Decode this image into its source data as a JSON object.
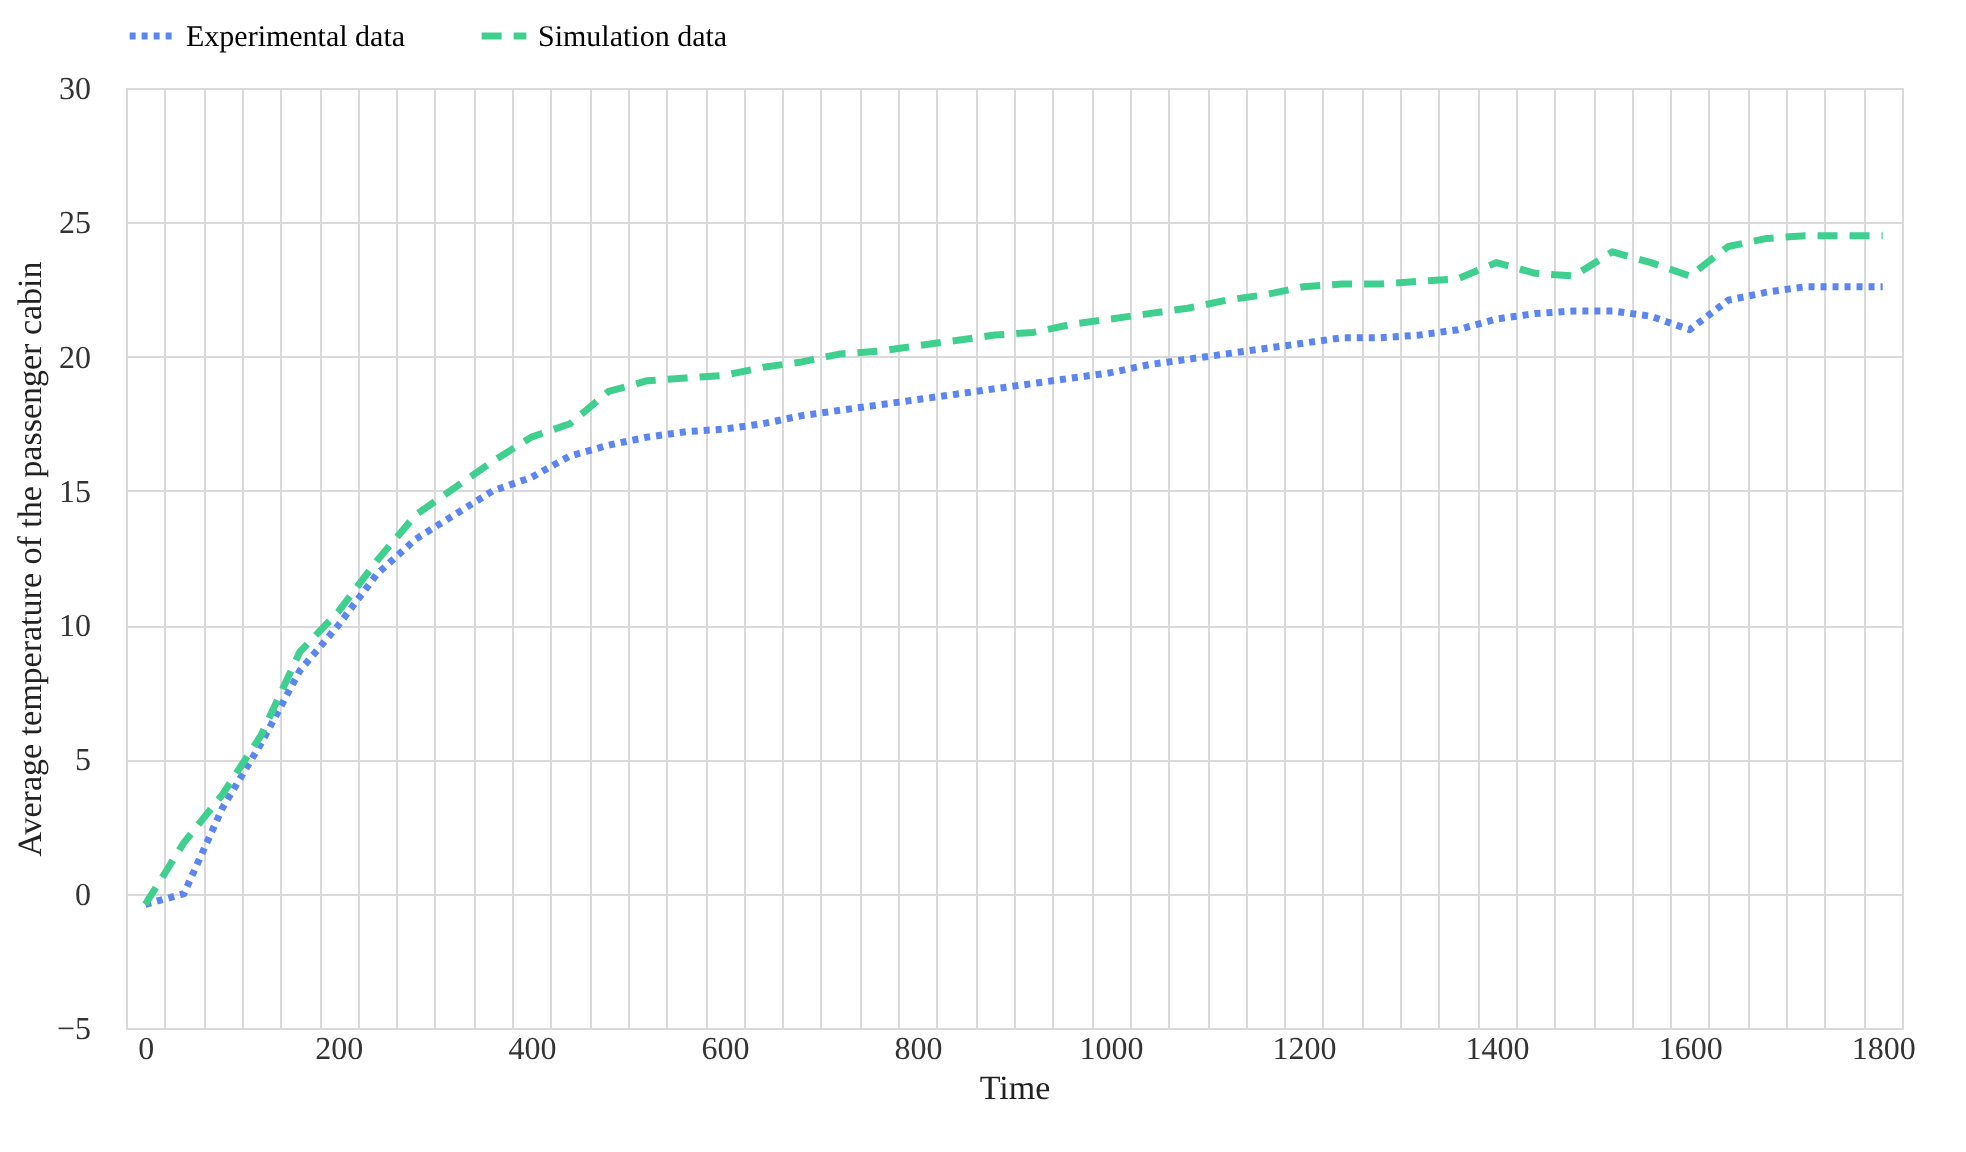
{
  "chart_data": {
    "type": "line",
    "xlabel": "Time",
    "ylabel": "Average temperature of the passenger cabin",
    "categories": [
      "0",
      null,
      null,
      null,
      null,
      "200",
      null,
      null,
      null,
      null,
      "400",
      null,
      null,
      null,
      null,
      "600",
      null,
      null,
      null,
      null,
      "800",
      null,
      null,
      null,
      null,
      "1000",
      null,
      null,
      null,
      null,
      "1200",
      null,
      null,
      null,
      null,
      "1400",
      null,
      null,
      null,
      null,
      "1600",
      null,
      null,
      null,
      null,
      "1800"
    ],
    "series": [
      {
        "name": "Experimental data",
        "color": "#5b86f2",
        "line_style": "dotted",
        "values": [
          -0.4,
          0.0,
          3.2,
          5.6,
          8.3,
          10.0,
          11.9,
          13.2,
          14.1,
          15.0,
          15.5,
          16.3,
          16.7,
          17.0,
          17.2,
          17.3,
          17.5,
          17.8,
          18.0,
          18.2,
          18.4,
          18.6,
          18.8,
          19.0,
          19.2,
          19.4,
          19.7,
          19.9,
          20.1,
          20.3,
          20.5,
          20.7,
          20.7,
          20.8,
          21.0,
          21.4,
          21.6,
          21.7,
          21.7,
          21.5,
          21.0,
          22.1,
          22.4,
          22.6,
          22.6,
          22.6
        ]
      },
      {
        "name": "Simulation data",
        "color": "#3fd08f",
        "line_style": "dashed",
        "values": [
          -0.4,
          1.9,
          3.7,
          5.9,
          9.0,
          10.5,
          12.4,
          14.1,
          15.1,
          16.1,
          17.0,
          17.5,
          18.7,
          19.1,
          19.2,
          19.3,
          19.6,
          19.8,
          20.1,
          20.2,
          20.4,
          20.6,
          20.8,
          20.9,
          21.2,
          21.4,
          21.6,
          21.8,
          22.1,
          22.3,
          22.6,
          22.7,
          22.7,
          22.8,
          22.9,
          23.5,
          23.1,
          23.0,
          23.9,
          23.5,
          23.0,
          24.1,
          24.4,
          24.5,
          24.5,
          24.5
        ]
      }
    ],
    "ylim": [
      -5,
      30
    ],
    "yticks": [
      -5,
      0,
      5,
      10,
      15,
      20,
      25,
      30
    ],
    "grid": true,
    "legend": "top"
  }
}
